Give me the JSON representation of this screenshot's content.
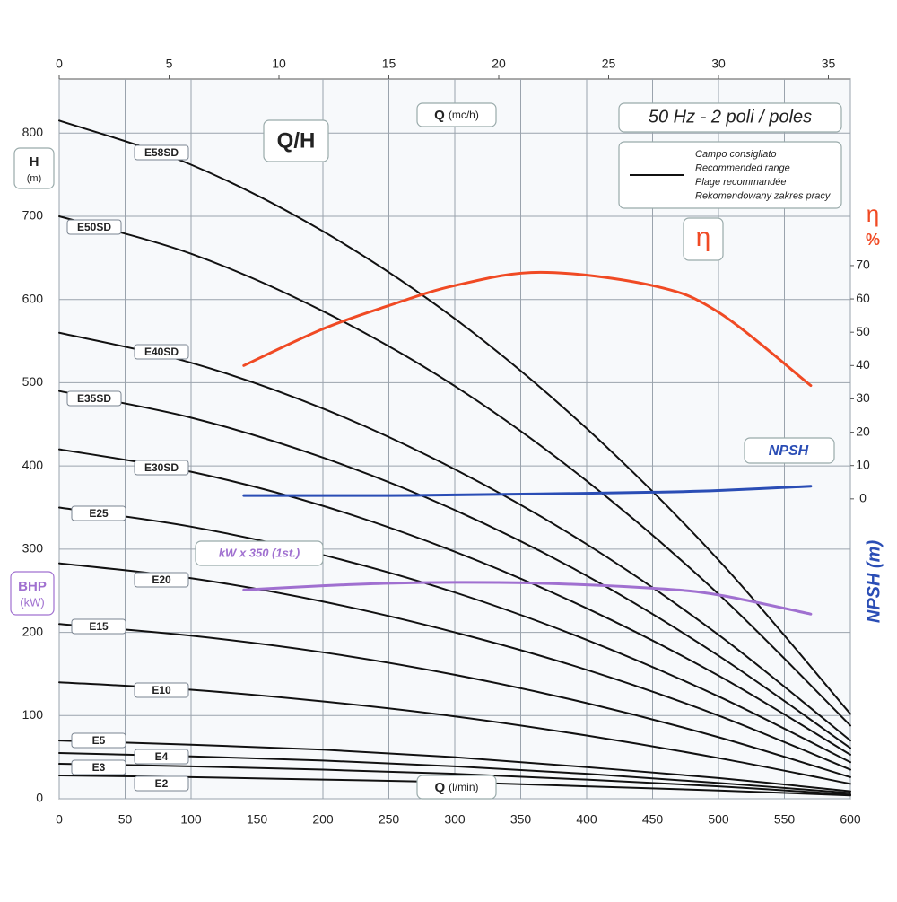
{
  "chart_data": {
    "type": "line",
    "title": "Q/H",
    "subtitle": "50 Hz - 2 poli / poles",
    "x_label": {
      "symbol": "Q",
      "unit": "(l/min)"
    },
    "x2_label": {
      "symbol": "Q",
      "unit": "(mc/h)"
    },
    "y_label": {
      "symbol": "H",
      "unit": "(m)"
    },
    "power_label": {
      "symbol": "BHP",
      "unit": "(kW)"
    },
    "y2_label": {
      "symbol": "η",
      "unit": "%"
    },
    "npsh_axis_label": "NPSH (m)",
    "legend": {
      "color": "#111111",
      "lines": [
        "Campo consigliato",
        "Recommended range",
        "Plage recommandée",
        "Rekomendowany zakres pracy"
      ]
    },
    "xlim": [
      0,
      600
    ],
    "xticks": [
      0,
      50,
      100,
      150,
      200,
      250,
      300,
      350,
      400,
      450,
      500,
      550,
      600
    ],
    "x2lim": [
      0,
      36
    ],
    "x2ticks": [
      0,
      5,
      10,
      15,
      20,
      25,
      30,
      35
    ],
    "ylim": [
      0,
      865
    ],
    "yticks": [
      0,
      100,
      200,
      300,
      400,
      500,
      600,
      700,
      800
    ],
    "y2lim": [
      -90,
      126
    ],
    "y2ticks": [
      0,
      10,
      20,
      30,
      40,
      50,
      60,
      70
    ],
    "grid": true,
    "x": [
      0,
      100,
      200,
      300,
      400,
      500,
      600
    ],
    "series": [
      {
        "name": "E58SD",
        "color": "#111111",
        "values": [
          815,
          762,
          682,
          577,
          445,
          287,
          102
        ]
      },
      {
        "name": "E50SD",
        "color": "#111111",
        "values": [
          700,
          655,
          586,
          496,
          382,
          246,
          88
        ]
      },
      {
        "name": "E40SD",
        "color": "#111111",
        "values": [
          560,
          524,
          469,
          396,
          306,
          197,
          70
        ]
      },
      {
        "name": "E35SD",
        "color": "#111111",
        "values": [
          490,
          458,
          410,
          347,
          268,
          172,
          61
        ]
      },
      {
        "name": "E30SD",
        "color": "#111111",
        "values": [
          420,
          393,
          352,
          297,
          229,
          148,
          53
        ]
      },
      {
        "name": "E25",
        "color": "#111111",
        "values": [
          350,
          327,
          293,
          248,
          191,
          123,
          44
        ]
      },
      {
        "name": "E20",
        "color": "#111111",
        "values": [
          283,
          265,
          237,
          200,
          155,
          100,
          35
        ]
      },
      {
        "name": "E15",
        "color": "#111111",
        "values": [
          210,
          196,
          176,
          149,
          115,
          74,
          26
        ]
      },
      {
        "name": "E10",
        "color": "#111111",
        "values": [
          140,
          131,
          117,
          99,
          76,
          49,
          18
        ]
      },
      {
        "name": "E5",
        "color": "#111111",
        "values": [
          70,
          65,
          59,
          50,
          38,
          25,
          9
        ]
      },
      {
        "name": "E4",
        "color": "#111111",
        "values": [
          55,
          51,
          46,
          39,
          30,
          19,
          7
        ]
      },
      {
        "name": "E3",
        "color": "#111111",
        "values": [
          42,
          39,
          35,
          30,
          23,
          15,
          5
        ]
      },
      {
        "name": "E2",
        "color": "#111111",
        "values": [
          28,
          26,
          23,
          20,
          15,
          10,
          4
        ]
      }
    ],
    "efficiency": {
      "name": "η",
      "color": "#f04a24",
      "axis": "y2",
      "x": [
        140,
        200,
        250,
        300,
        365,
        450,
        500,
        570
      ],
      "values": [
        40,
        51,
        58,
        64,
        68,
        64,
        56,
        34
      ]
    },
    "npsh": {
      "name": "NPSH",
      "color": "#2a4db5",
      "axis": "y2",
      "x": [
        140,
        200,
        250,
        300,
        365,
        450,
        500,
        570
      ],
      "values": [
        1,
        1,
        1,
        1.2,
        1.5,
        2,
        2.5,
        3.8
      ]
    },
    "power": {
      "name": "kW x 350 (1st.)",
      "color": "#a070d0",
      "x": [
        140,
        200,
        250,
        300,
        365,
        450,
        500,
        570
      ],
      "values": [
        251,
        256,
        259,
        260,
        259,
        253,
        245,
        222
      ]
    }
  }
}
